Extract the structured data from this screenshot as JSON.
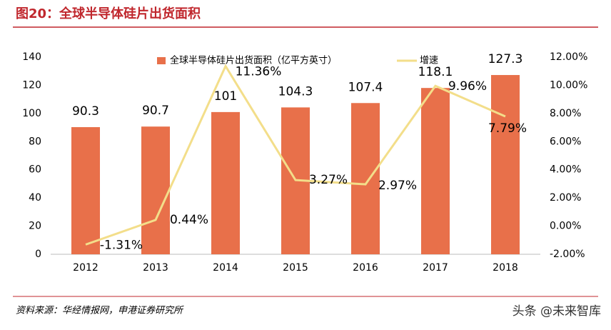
{
  "title": "图20：全球半导体硅片出货面积",
  "source": "资料来源：华经情报网，申港证券研究所",
  "watermark": "头条 @未来智库",
  "chart_data": {
    "type": "bar",
    "categories": [
      "2012",
      "2013",
      "2014",
      "2015",
      "2016",
      "2017",
      "2018"
    ],
    "series": [
      {
        "name": "全球半导体硅片出货面积（亿平方英寸）",
        "type": "bar",
        "color": "#e8704a",
        "values": [
          90.3,
          90.7,
          101,
          104.3,
          107.4,
          118.1,
          127.3
        ]
      },
      {
        "name": "增速",
        "type": "line",
        "axis": "y2",
        "color": "#f3de8a",
        "values": [
          -1.31,
          0.44,
          11.36,
          3.27,
          2.97,
          9.96,
          7.79
        ],
        "value_labels": [
          "-1.31%",
          "0.44%",
          "11.36%",
          "3.27%",
          "2.97%",
          "9.96%",
          "7.79%"
        ]
      }
    ],
    "ylim": [
      0,
      140
    ],
    "yticks": [
      0,
      20,
      40,
      60,
      80,
      100,
      120,
      140
    ],
    "y2lim": [
      -2,
      12
    ],
    "y2ticks": [
      {
        "value": -2,
        "label": "-2.00%"
      },
      {
        "value": 0,
        "label": "0.00%"
      },
      {
        "value": 2,
        "label": "2.00%"
      },
      {
        "value": 4,
        "label": "4.00%"
      },
      {
        "value": 6,
        "label": "6.00%"
      },
      {
        "value": 8,
        "label": "8.00%"
      },
      {
        "value": 10,
        "label": "10.00%"
      },
      {
        "value": 12,
        "label": "12.00%"
      }
    ],
    "grid": false,
    "legend": "top"
  }
}
